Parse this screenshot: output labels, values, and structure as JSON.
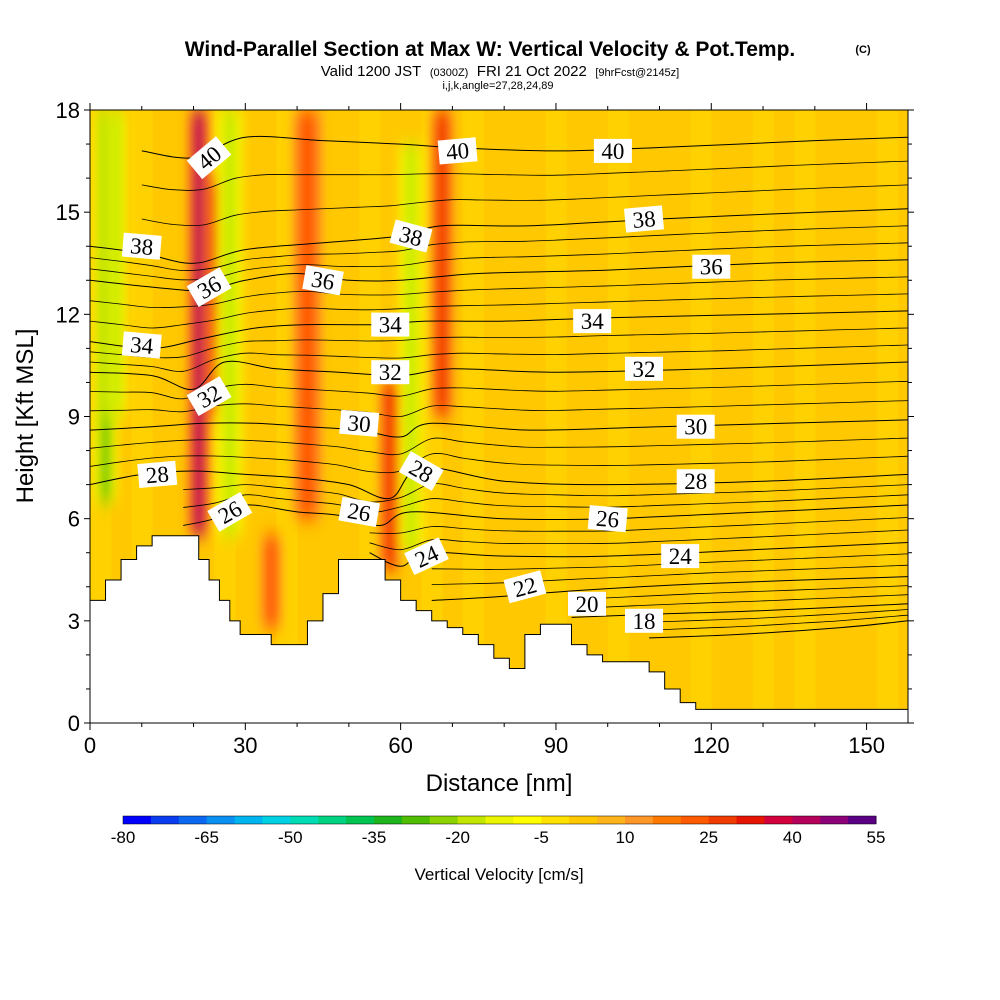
{
  "title": {
    "main": "Wind-Parallel Section at Max W: Vertical Velocity & Pot.Temp.",
    "copyright": "(C)",
    "valid_prefix": "Valid 1200 JST",
    "valid_utc": "(0300Z)",
    "valid_date": "FRI 21 Oct 2022",
    "forecast": "[9hrFcst@2145z]",
    "indices": "i,j,k,angle=27,28,24,89"
  },
  "chart_data": {
    "type": "heatmap",
    "xlabel": "Distance [nm]",
    "ylabel": "Height [Kft MSL]",
    "xlim": [
      0,
      158
    ],
    "ylim": [
      0,
      18
    ],
    "x_ticks": [
      0,
      30,
      60,
      90,
      120,
      150
    ],
    "x_tick_labels": [
      "0",
      "30",
      "60",
      "90",
      "120",
      "150"
    ],
    "y_ticks": [
      0,
      3,
      6,
      9,
      12,
      15,
      18
    ],
    "y_tick_labels": [
      "0",
      "3",
      "6",
      "9",
      "12",
      "15",
      "18"
    ],
    "field": "Vertical Velocity",
    "colorbar": {
      "label": "Vertical Velocity [cm/s]",
      "min": -80,
      "max": 55,
      "step": 5,
      "tick_values": [
        -80,
        -65,
        -50,
        -35,
        -20,
        -5,
        10,
        25,
        40,
        55
      ],
      "tick_labels": [
        "-80",
        "-65",
        "-50",
        "-35",
        "-20",
        "-5",
        "10",
        "25",
        "40",
        "55"
      ],
      "colors": [
        "#0000ff",
        "#0a3cf0",
        "#0c68f0",
        "#0a90f0",
        "#00b4f0",
        "#00d2e6",
        "#00dcb4",
        "#00d282",
        "#00c350",
        "#1eb41e",
        "#50be00",
        "#8cd200",
        "#c3e600",
        "#ebf500",
        "#ffff00",
        "#ffe100",
        "#ffc800",
        "#ffb41e",
        "#ff9628",
        "#ff7800",
        "#ff5a00",
        "#f03c00",
        "#e61400",
        "#d2003c",
        "#b4005a",
        "#8c0078",
        "#5a0082"
      ]
    },
    "velocity_features": [
      {
        "x": 3,
        "x_width": 2.2,
        "z_range": [
          6.5,
          18
        ],
        "w": -30
      },
      {
        "x": 5,
        "x_width": 2.0,
        "z_range": [
          9,
          18
        ],
        "w": -22
      },
      {
        "x": 21,
        "x_width": 2.2,
        "z_range": [
          5.5,
          18
        ],
        "w": 45
      },
      {
        "x": 24,
        "x_width": 1.6,
        "z_range": [
          9,
          16
        ],
        "w": 35
      },
      {
        "x": 27,
        "x_width": 2.4,
        "z_range": [
          5.5,
          18
        ],
        "w": -22
      },
      {
        "x": 35,
        "x_width": 2.0,
        "z_range": [
          2.8,
          5.5
        ],
        "w": 24
      },
      {
        "x": 42,
        "x_width": 2.8,
        "z_range": [
          6,
          18
        ],
        "w": 22
      },
      {
        "x": 58,
        "x_width": 2.2,
        "z_range": [
          4.5,
          10
        ],
        "w": 30
      },
      {
        "x": 62,
        "x_width": 2.2,
        "z_range": [
          5,
          17
        ],
        "w": -20
      },
      {
        "x": 68,
        "x_width": 2.2,
        "z_range": [
          9,
          18
        ],
        "w": 30
      }
    ],
    "terrain": [
      [
        0,
        3.6
      ],
      [
        3,
        4.2
      ],
      [
        6,
        4.8
      ],
      [
        9,
        5.2
      ],
      [
        12,
        5.5
      ],
      [
        15,
        5.5
      ],
      [
        18,
        5.5
      ],
      [
        21,
        4.8
      ],
      [
        23,
        4.2
      ],
      [
        25,
        3.6
      ],
      [
        27,
        3.0
      ],
      [
        29,
        2.6
      ],
      [
        32,
        2.6
      ],
      [
        35,
        2.3
      ],
      [
        39,
        2.3
      ],
      [
        42,
        3.0
      ],
      [
        45,
        3.8
      ],
      [
        48,
        4.8
      ],
      [
        54,
        4.8
      ],
      [
        57,
        4.2
      ],
      [
        60,
        3.6
      ],
      [
        63,
        3.3
      ],
      [
        66,
        3.0
      ],
      [
        69,
        2.8
      ],
      [
        72,
        2.6
      ],
      [
        75,
        2.3
      ],
      [
        78,
        1.9
      ],
      [
        81,
        1.6
      ],
      [
        84,
        2.6
      ],
      [
        87,
        2.9
      ],
      [
        90,
        2.9
      ],
      [
        93,
        2.3
      ],
      [
        96,
        2.0
      ],
      [
        99,
        1.8
      ],
      [
        105,
        1.8
      ],
      [
        108,
        1.5
      ],
      [
        111,
        1.0
      ],
      [
        114,
        0.6
      ],
      [
        117,
        0.4
      ],
      [
        158,
        0.4
      ]
    ],
    "theta_contours": [
      {
        "level": 18,
        "label": "18",
        "points": [
          [
            108,
            2.5
          ],
          [
            125,
            2.6
          ],
          [
            145,
            2.8
          ],
          [
            158,
            3.0
          ]
        ]
      },
      {
        "level": 20,
        "label": "20",
        "points": [
          [
            93,
            3.1
          ],
          [
            110,
            3.2
          ],
          [
            130,
            3.3
          ],
          [
            158,
            3.5
          ]
        ]
      },
      {
        "level": 22,
        "label": "22",
        "points": [
          [
            66,
            3.6
          ],
          [
            78,
            3.7
          ],
          [
            95,
            3.9
          ],
          [
            120,
            4.1
          ],
          [
            158,
            4.3
          ]
        ]
      },
      {
        "level": 24,
        "label": "24",
        "points": [
          [
            54,
            5.0
          ],
          [
            60,
            4.6
          ],
          [
            65,
            5.0
          ],
          [
            80,
            4.9
          ],
          [
            100,
            4.9
          ],
          [
            130,
            5.1
          ],
          [
            158,
            5.3
          ]
        ]
      },
      {
        "level": 26,
        "label": "26",
        "points": [
          [
            18,
            5.8
          ],
          [
            24,
            6.0
          ],
          [
            30,
            6.4
          ],
          [
            40,
            6.2
          ],
          [
            48,
            6.1
          ],
          [
            56,
            5.8
          ],
          [
            62,
            6.2
          ],
          [
            80,
            6.0
          ],
          [
            100,
            6.0
          ],
          [
            130,
            6.2
          ],
          [
            158,
            6.4
          ]
        ]
      },
      {
        "level": 28,
        "label": "28",
        "points": [
          [
            0,
            7.0
          ],
          [
            10,
            7.3
          ],
          [
            20,
            7.4
          ],
          [
            30,
            7.3
          ],
          [
            40,
            7.2
          ],
          [
            50,
            7.0
          ],
          [
            58,
            6.6
          ],
          [
            64,
            7.5
          ],
          [
            80,
            7.1
          ],
          [
            100,
            7.0
          ],
          [
            130,
            7.1
          ],
          [
            158,
            7.3
          ]
        ]
      },
      {
        "level": 30,
        "label": "30",
        "points": [
          [
            0,
            8.6
          ],
          [
            12,
            8.7
          ],
          [
            22,
            8.8
          ],
          [
            32,
            8.8
          ],
          [
            42,
            8.7
          ],
          [
            52,
            8.6
          ],
          [
            60,
            8.4
          ],
          [
            66,
            8.8
          ],
          [
            85,
            8.6
          ],
          [
            110,
            8.7
          ],
          [
            158,
            8.9
          ]
        ]
      },
      {
        "level": 32,
        "label": "32",
        "points": [
          [
            0,
            10.3
          ],
          [
            12,
            10.2
          ],
          [
            20,
            9.8
          ],
          [
            26,
            10.6
          ],
          [
            36,
            10.4
          ],
          [
            48,
            10.3
          ],
          [
            60,
            10.2
          ],
          [
            70,
            10.4
          ],
          [
            90,
            10.3
          ],
          [
            120,
            10.4
          ],
          [
            158,
            10.6
          ]
        ]
      },
      {
        "level": 34,
        "label": "34",
        "points": [
          [
            0,
            11.2
          ],
          [
            12,
            11.0
          ],
          [
            22,
            11.3
          ],
          [
            32,
            11.6
          ],
          [
            42,
            11.7
          ],
          [
            55,
            11.7
          ],
          [
            65,
            11.8
          ],
          [
            80,
            11.8
          ],
          [
            100,
            11.9
          ],
          [
            130,
            12.0
          ],
          [
            158,
            12.1
          ]
        ]
      },
      {
        "level": 36,
        "label": "36",
        "points": [
          [
            0,
            13.0
          ],
          [
            12,
            12.8
          ],
          [
            22,
            12.7
          ],
          [
            30,
            13.0
          ],
          [
            40,
            13.2
          ],
          [
            50,
            13.0
          ],
          [
            60,
            13.0
          ],
          [
            75,
            13.2
          ],
          [
            100,
            13.3
          ],
          [
            130,
            13.5
          ],
          [
            158,
            13.6
          ]
        ]
      },
      {
        "level": 38,
        "label": "38",
        "points": [
          [
            0,
            14.0
          ],
          [
            10,
            13.8
          ],
          [
            20,
            13.5
          ],
          [
            30,
            13.9
          ],
          [
            45,
            14.1
          ],
          [
            60,
            14.3
          ],
          [
            68,
            14.6
          ],
          [
            85,
            14.6
          ],
          [
            110,
            14.8
          ],
          [
            140,
            15.0
          ],
          [
            158,
            15.1
          ]
        ]
      },
      {
        "level": 40,
        "label": "40",
        "points": [
          [
            10,
            16.8
          ],
          [
            20,
            16.6
          ],
          [
            30,
            17.2
          ],
          [
            45,
            17.1
          ],
          [
            60,
            17.0
          ],
          [
            70,
            16.9
          ],
          [
            90,
            16.8
          ],
          [
            110,
            16.9
          ],
          [
            140,
            17.1
          ],
          [
            158,
            17.2
          ]
        ]
      }
    ],
    "contour_labels": [
      {
        "text": "40",
        "x": 23,
        "z": 16.6,
        "angle": -40
      },
      {
        "text": "40",
        "x": 71,
        "z": 16.8,
        "angle": -5
      },
      {
        "text": "40",
        "x": 101,
        "z": 16.8,
        "angle": 0
      },
      {
        "text": "38",
        "x": 10,
        "z": 14.0,
        "angle": 5
      },
      {
        "text": "38",
        "x": 62,
        "z": 14.3,
        "angle": 15
      },
      {
        "text": "38",
        "x": 107,
        "z": 14.8,
        "angle": -5
      },
      {
        "text": "36",
        "x": 23,
        "z": 12.8,
        "angle": -30
      },
      {
        "text": "36",
        "x": 45,
        "z": 13.0,
        "angle": 10
      },
      {
        "text": "36",
        "x": 120,
        "z": 13.4,
        "angle": 0
      },
      {
        "text": "34",
        "x": 10,
        "z": 11.1,
        "angle": 5
      },
      {
        "text": "34",
        "x": 58,
        "z": 11.7,
        "angle": 0
      },
      {
        "text": "34",
        "x": 97,
        "z": 11.8,
        "angle": 0
      },
      {
        "text": "32",
        "x": 23,
        "z": 9.6,
        "angle": -30
      },
      {
        "text": "32",
        "x": 58,
        "z": 10.3,
        "angle": 0
      },
      {
        "text": "32",
        "x": 107,
        "z": 10.4,
        "angle": 0
      },
      {
        "text": "30",
        "x": 52,
        "z": 8.8,
        "angle": 5
      },
      {
        "text": "30",
        "x": 117,
        "z": 8.7,
        "angle": 0
      },
      {
        "text": "28",
        "x": 13,
        "z": 7.3,
        "angle": -5
      },
      {
        "text": "28",
        "x": 64,
        "z": 7.4,
        "angle": 30
      },
      {
        "text": "28",
        "x": 117,
        "z": 7.1,
        "angle": 0
      },
      {
        "text": "26",
        "x": 27,
        "z": 6.2,
        "angle": -30
      },
      {
        "text": "26",
        "x": 52,
        "z": 6.2,
        "angle": 10
      },
      {
        "text": "26",
        "x": 100,
        "z": 6.0,
        "angle": 5
      },
      {
        "text": "24",
        "x": 65,
        "z": 4.9,
        "angle": -25
      },
      {
        "text": "24",
        "x": 114,
        "z": 4.9,
        "angle": 0
      },
      {
        "text": "22",
        "x": 84,
        "z": 4.0,
        "angle": -15
      },
      {
        "text": "20",
        "x": 96,
        "z": 3.5,
        "angle": 0
      },
      {
        "text": "18",
        "x": 107,
        "z": 3.0,
        "angle": 0
      }
    ]
  }
}
